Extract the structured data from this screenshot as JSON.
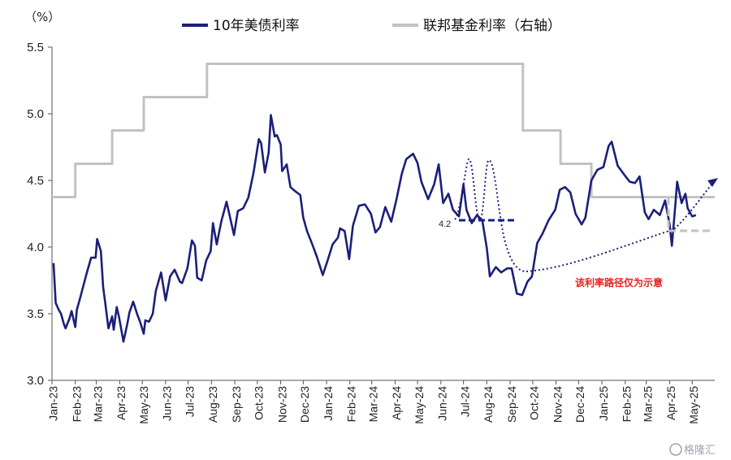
{
  "chart_data": {
    "type": "line",
    "unit_label": "（%）",
    "y_ticks": [
      "3.0",
      "3.5",
      "4.0",
      "4.5",
      "5.0",
      "5.5"
    ],
    "ylim": [
      3.0,
      5.5
    ],
    "x_start": "2023-01-01",
    "x_end": "2025-05-31",
    "x_tick_labels": [
      "Jan-23",
      "Feb-23",
      "Mar-23",
      "Apr-23",
      "May-23",
      "Jun-23",
      "Jul-23",
      "Aug-23",
      "Sep-23",
      "Oct-23",
      "Nov-23",
      "Dec-23",
      "Jan-24",
      "Feb-24",
      "Mar-24",
      "Apr-24",
      "May-24",
      "Jun-24",
      "Jul-24",
      "Aug-24",
      "Sep-24",
      "Oct-24",
      "Nov-24",
      "Dec-24",
      "Jan-25",
      "Feb-25",
      "Mar-25",
      "Apr-25",
      "May-25"
    ],
    "series": [
      {
        "name": "10年美债利率",
        "color": "#1b1f7a",
        "points": [
          [
            "2023-01-03",
            3.88
          ],
          [
            "2023-01-06",
            3.58
          ],
          [
            "2023-01-10",
            3.53
          ],
          [
            "2023-01-13",
            3.5
          ],
          [
            "2023-01-17",
            3.42
          ],
          [
            "2023-01-19",
            3.39
          ],
          [
            "2023-01-24",
            3.46
          ],
          [
            "2023-01-27",
            3.52
          ],
          [
            "2023-02-01",
            3.4
          ],
          [
            "2023-02-03",
            3.53
          ],
          [
            "2023-02-08",
            3.63
          ],
          [
            "2023-02-14",
            3.76
          ],
          [
            "2023-02-17",
            3.82
          ],
          [
            "2023-02-22",
            3.92
          ],
          [
            "2023-02-28",
            3.92
          ],
          [
            "2023-03-02",
            4.06
          ],
          [
            "2023-03-07",
            3.97
          ],
          [
            "2023-03-10",
            3.7
          ],
          [
            "2023-03-13",
            3.57
          ],
          [
            "2023-03-17",
            3.39
          ],
          [
            "2023-03-22",
            3.48
          ],
          [
            "2023-03-24",
            3.38
          ],
          [
            "2023-03-28",
            3.55
          ],
          [
            "2023-03-31",
            3.48
          ],
          [
            "2023-04-06",
            3.29
          ],
          [
            "2023-04-11",
            3.42
          ],
          [
            "2023-04-14",
            3.51
          ],
          [
            "2023-04-19",
            3.59
          ],
          [
            "2023-04-24",
            3.5
          ],
          [
            "2023-04-28",
            3.44
          ],
          [
            "2023-05-03",
            3.35
          ],
          [
            "2023-05-05",
            3.45
          ],
          [
            "2023-05-10",
            3.44
          ],
          [
            "2023-05-15",
            3.5
          ],
          [
            "2023-05-19",
            3.67
          ],
          [
            "2023-05-26",
            3.81
          ],
          [
            "2023-06-01",
            3.6
          ],
          [
            "2023-06-07",
            3.78
          ],
          [
            "2023-06-13",
            3.83
          ],
          [
            "2023-06-20",
            3.74
          ],
          [
            "2023-06-23",
            3.73
          ],
          [
            "2023-06-30",
            3.84
          ],
          [
            "2023-07-06",
            4.05
          ],
          [
            "2023-07-10",
            4.01
          ],
          [
            "2023-07-13",
            3.77
          ],
          [
            "2023-07-19",
            3.75
          ],
          [
            "2023-07-25",
            3.9
          ],
          [
            "2023-07-31",
            3.97
          ],
          [
            "2023-08-03",
            4.18
          ],
          [
            "2023-08-08",
            4.02
          ],
          [
            "2023-08-14",
            4.19
          ],
          [
            "2023-08-21",
            4.34
          ],
          [
            "2023-08-25",
            4.24
          ],
          [
            "2023-08-31",
            4.09
          ],
          [
            "2023-09-05",
            4.27
          ],
          [
            "2023-09-12",
            4.29
          ],
          [
            "2023-09-19",
            4.37
          ],
          [
            "2023-09-26",
            4.56
          ],
          [
            "2023-10-03",
            4.81
          ],
          [
            "2023-10-06",
            4.78
          ],
          [
            "2023-10-11",
            4.56
          ],
          [
            "2023-10-16",
            4.71
          ],
          [
            "2023-10-19",
            4.99
          ],
          [
            "2023-10-24",
            4.83
          ],
          [
            "2023-10-27",
            4.84
          ],
          [
            "2023-11-01",
            4.77
          ],
          [
            "2023-11-03",
            4.57
          ],
          [
            "2023-11-09",
            4.62
          ],
          [
            "2023-11-14",
            4.45
          ],
          [
            "2023-11-20",
            4.42
          ],
          [
            "2023-11-27",
            4.39
          ],
          [
            "2023-12-01",
            4.22
          ],
          [
            "2023-12-06",
            4.12
          ],
          [
            "2023-12-13",
            4.02
          ],
          [
            "2023-12-19",
            3.93
          ],
          [
            "2023-12-27",
            3.79
          ],
          [
            "2024-01-03",
            3.91
          ],
          [
            "2024-01-09",
            4.02
          ],
          [
            "2024-01-16",
            4.07
          ],
          [
            "2024-01-19",
            4.14
          ],
          [
            "2024-01-25",
            4.12
          ],
          [
            "2024-01-31",
            3.91
          ],
          [
            "2024-02-05",
            4.16
          ],
          [
            "2024-02-13",
            4.31
          ],
          [
            "2024-02-21",
            4.32
          ],
          [
            "2024-02-29",
            4.25
          ],
          [
            "2024-03-06",
            4.11
          ],
          [
            "2024-03-12",
            4.15
          ],
          [
            "2024-03-19",
            4.3
          ],
          [
            "2024-03-27",
            4.19
          ],
          [
            "2024-04-03",
            4.36
          ],
          [
            "2024-04-10",
            4.55
          ],
          [
            "2024-04-16",
            4.66
          ],
          [
            "2024-04-25",
            4.7
          ],
          [
            "2024-05-01",
            4.63
          ],
          [
            "2024-05-06",
            4.49
          ],
          [
            "2024-05-15",
            4.36
          ],
          [
            "2024-05-23",
            4.47
          ],
          [
            "2024-05-29",
            4.62
          ],
          [
            "2024-06-04",
            4.33
          ],
          [
            "2024-06-11",
            4.4
          ],
          [
            "2024-06-17",
            4.28
          ],
          [
            "2024-06-25",
            4.23
          ],
          [
            "2024-07-01",
            4.47
          ],
          [
            "2024-07-05",
            4.28
          ],
          [
            "2024-07-12",
            4.18
          ],
          [
            "2024-07-19",
            4.24
          ],
          [
            "2024-07-26",
            4.2
          ],
          [
            "2024-08-01",
            3.99
          ],
          [
            "2024-08-05",
            3.78
          ],
          [
            "2024-08-13",
            3.85
          ],
          [
            "2024-08-20",
            3.81
          ],
          [
            "2024-08-28",
            3.84
          ],
          [
            "2024-09-03",
            3.84
          ],
          [
            "2024-09-10",
            3.65
          ],
          [
            "2024-09-17",
            3.64
          ],
          [
            "2024-09-24",
            3.74
          ],
          [
            "2024-09-30",
            3.78
          ],
          [
            "2024-10-07",
            4.03
          ],
          [
            "2024-10-14",
            4.1
          ],
          [
            "2024-10-22",
            4.2
          ],
          [
            "2024-10-31",
            4.28
          ],
          [
            "2024-11-06",
            4.43
          ],
          [
            "2024-11-13",
            4.45
          ],
          [
            "2024-11-20",
            4.41
          ],
          [
            "2024-11-27",
            4.25
          ],
          [
            "2024-12-05",
            4.17
          ],
          [
            "2024-12-10",
            4.22
          ],
          [
            "2024-12-18",
            4.5
          ],
          [
            "2024-12-26",
            4.58
          ],
          [
            "2025-01-03",
            4.6
          ],
          [
            "2025-01-10",
            4.76
          ],
          [
            "2025-01-14",
            4.79
          ],
          [
            "2025-01-22",
            4.61
          ],
          [
            "2025-01-31",
            4.54
          ],
          [
            "2025-02-07",
            4.49
          ],
          [
            "2025-02-14",
            4.48
          ],
          [
            "2025-02-20",
            4.53
          ],
          [
            "2025-02-27",
            4.26
          ],
          [
            "2025-03-04",
            4.21
          ],
          [
            "2025-03-11",
            4.28
          ],
          [
            "2025-03-19",
            4.24
          ],
          [
            "2025-03-26",
            4.35
          ],
          [
            "2025-04-01",
            4.17
          ],
          [
            "2025-04-04",
            4.01
          ],
          [
            "2025-04-09",
            4.34
          ],
          [
            "2025-04-11",
            4.49
          ],
          [
            "2025-04-17",
            4.33
          ],
          [
            "2025-04-22",
            4.4
          ],
          [
            "2025-04-25",
            4.29
          ],
          [
            "2025-05-01",
            4.23
          ],
          [
            "2025-05-06",
            4.24
          ]
        ]
      },
      {
        "name": "联邦基金利率（右轴）",
        "color": "#c2c2c2",
        "points": [
          [
            "2023-01-01",
            4.375
          ],
          [
            "2023-02-01",
            4.375
          ],
          [
            "2023-02-01",
            4.625
          ],
          [
            "2023-03-22",
            4.625
          ],
          [
            "2023-03-22",
            4.875
          ],
          [
            "2023-05-03",
            4.875
          ],
          [
            "2023-05-03",
            5.125
          ],
          [
            "2023-07-26",
            5.125
          ],
          [
            "2023-07-26",
            5.375
          ],
          [
            "2024-09-18",
            5.375
          ],
          [
            "2024-09-18",
            4.875
          ],
          [
            "2024-11-07",
            4.875
          ],
          [
            "2024-11-07",
            4.625
          ],
          [
            "2024-12-18",
            4.625
          ],
          [
            "2024-12-18",
            4.375
          ],
          [
            "2025-05-31",
            4.375
          ]
        ]
      }
    ],
    "annotations": [
      {
        "text": "该利率路径仅为示意",
        "color": "#e8201e"
      },
      {
        "text": "4.2",
        "color": "#222222"
      }
    ]
  },
  "watermark": "格隆汇"
}
